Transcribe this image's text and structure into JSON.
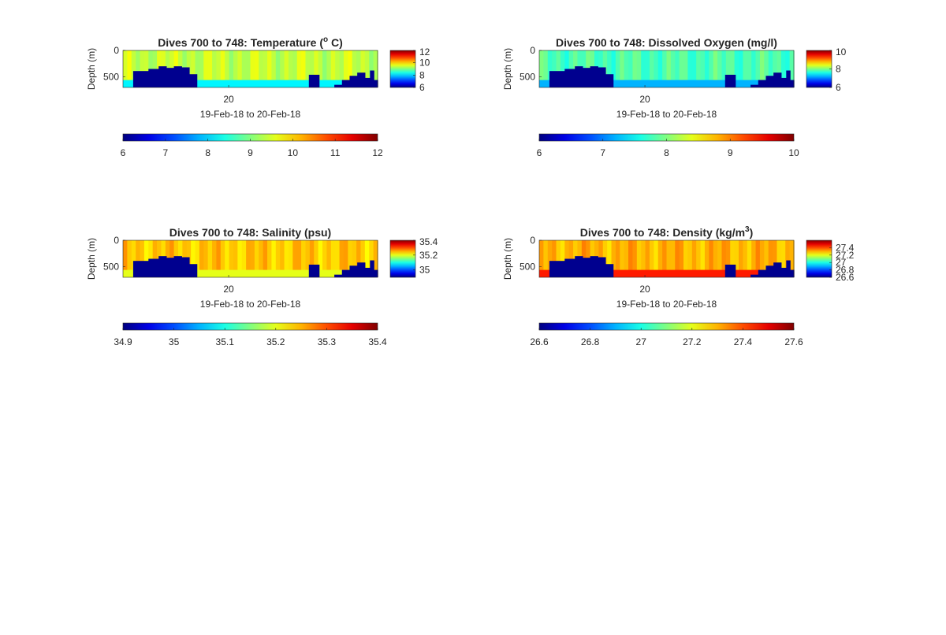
{
  "chart_data": [
    {
      "type": "heatmap",
      "title": "Dives 700 to 748: Temperature (",
      "title_sup": "o",
      "title_post": " C)",
      "ylabel": "Depth (m)",
      "xlabel": "19-Feb-18 to 20-Feb-18",
      "x_ticks": [
        "20"
      ],
      "y_ticks": [
        "0",
        "500"
      ],
      "ylim": [
        0,
        700
      ],
      "colormap": "jet",
      "clim": [
        6,
        12
      ],
      "fill_value": 9.4,
      "deep_value": 8.2,
      "side_colorbar_ticks": [
        "12",
        "10",
        "8",
        "6"
      ],
      "side_colorbar_range": [
        6,
        12
      ],
      "colorbar_ticks": [
        "6",
        "7",
        "8",
        "9",
        "10",
        "11",
        "12"
      ]
    },
    {
      "type": "heatmap",
      "title": "Dives 700 to 748: Dissolved Oxygen (mg/l)",
      "title_sup": "",
      "title_post": "",
      "ylabel": "Depth (m)",
      "xlabel": "19-Feb-18 to 20-Feb-18",
      "x_ticks": [
        "20"
      ],
      "y_ticks": [
        "0",
        "500"
      ],
      "ylim": [
        0,
        700
      ],
      "colormap": "jet",
      "clim": [
        6,
        10
      ],
      "fill_value": 7.8,
      "deep_value": 7.2,
      "side_colorbar_ticks": [
        "10",
        "8",
        "6"
      ],
      "side_colorbar_range": [
        6,
        10
      ],
      "colorbar_ticks": [
        "6",
        "7",
        "8",
        "9",
        "10"
      ]
    },
    {
      "type": "heatmap",
      "title": "Dives 700 to 748: Salinity (psu)",
      "title_sup": "",
      "title_post": "",
      "ylabel": "Depth (m)",
      "xlabel": "19-Feb-18 to 20-Feb-18",
      "x_ticks": [
        "20"
      ],
      "y_ticks": [
        "0",
        "500"
      ],
      "ylim": [
        0,
        700
      ],
      "colormap": "jet",
      "clim": [
        34.9,
        35.4
      ],
      "fill_value": 35.24,
      "deep_value": 35.2,
      "side_colorbar_ticks": [
        "35.4",
        "35.2",
        "35"
      ],
      "side_colorbar_range": [
        34.9,
        35.4
      ],
      "colorbar_ticks": [
        "34.9",
        "35",
        "35.1",
        "35.2",
        "35.3",
        "35.4"
      ]
    },
    {
      "type": "heatmap",
      "title": "Dives 700 to 748: Density (kg/m",
      "title_sup": "3",
      "title_post": ")",
      "ylabel": "Depth (m)",
      "xlabel": "19-Feb-18 to 20-Feb-18",
      "x_ticks": [
        "20"
      ],
      "y_ticks": [
        "0",
        "500"
      ],
      "ylim": [
        0,
        700
      ],
      "colormap": "jet",
      "clim": [
        26.6,
        27.6
      ],
      "fill_value": 27.3,
      "deep_value": 27.45,
      "side_colorbar_ticks": [
        "27.4",
        "27.2",
        "27",
        "26.8",
        "26.6"
      ],
      "side_colorbar_range": [
        26.6,
        27.6
      ],
      "colorbar_ticks": [
        "26.6",
        "26.8",
        "27",
        "27.2",
        "27.4",
        "27.6"
      ]
    }
  ]
}
